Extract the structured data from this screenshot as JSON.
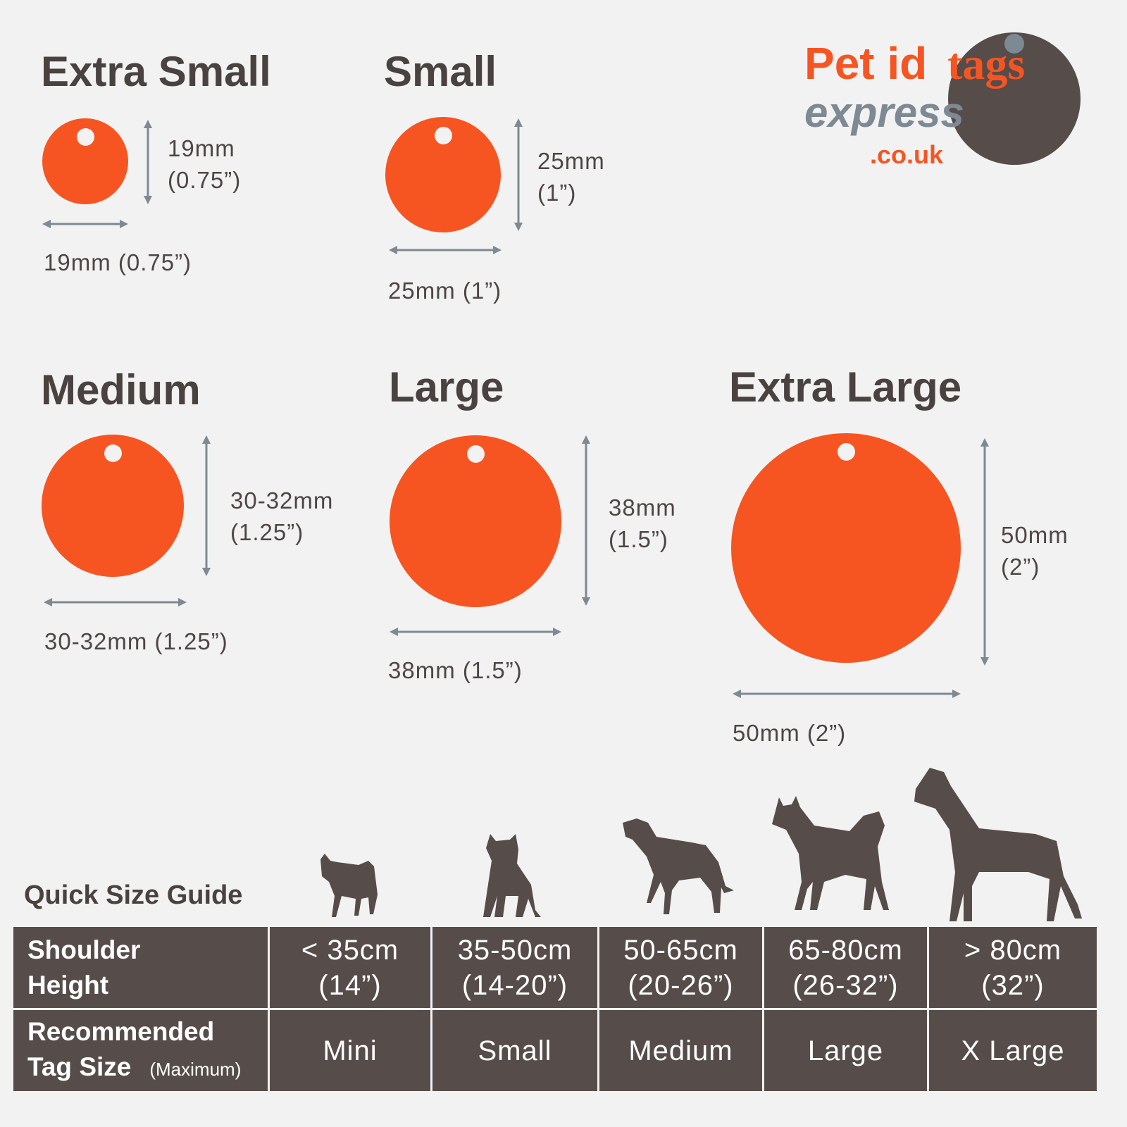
{
  "logo": {
    "line1a": "Pet id",
    "line1b": "tags",
    "line2": "express",
    "line3": ".co.uk",
    "colors": {
      "orange": "#f65522",
      "grey": "#7d8993",
      "dark": "#564c4a"
    }
  },
  "colors": {
    "tag": "#f65522",
    "arrow": "#7d8993",
    "table_bg": "#564c4a",
    "background": "#f2f2f2"
  },
  "sizes": [
    {
      "title": "Extra Small",
      "height_mm": "19mm",
      "height_in": "(0.75”)",
      "width_label": "19mm (0.75”)"
    },
    {
      "title": "Small",
      "height_mm": "25mm",
      "height_in": "(1”)",
      "width_label": "25mm (1”)"
    },
    {
      "title": "Medium",
      "height_mm": "30-32mm",
      "height_in": "(1.25”)",
      "width_label": "30-32mm (1.25”)"
    },
    {
      "title": "Large",
      "height_mm": "38mm",
      "height_in": "(1.5”)",
      "width_label": "38mm (1.5”)"
    },
    {
      "title": "Extra Large",
      "height_mm": "50mm",
      "height_in": "(2”)",
      "width_label": "50mm (2”)"
    }
  ],
  "guide": {
    "title": "Quick Size Guide",
    "row1_header_a": "Shoulder",
    "row1_header_b": "Height",
    "row2_header_a": "Recommended",
    "row2_header_b": "Tag Size",
    "row2_header_note": "(Maximum)",
    "columns": [
      {
        "height_cm": "< 35cm",
        "height_in": "(14”)",
        "tag": "Mini",
        "dog_icon": "chihuahua-silhouette"
      },
      {
        "height_cm": "35-50cm",
        "height_in": "(14-20”)",
        "tag": "Small",
        "dog_icon": "french-bulldog-silhouette"
      },
      {
        "height_cm": "50-65cm",
        "height_in": "(20-26”)",
        "tag": "Medium",
        "dog_icon": "boxer-silhouette"
      },
      {
        "height_cm": "65-80cm",
        "height_in": "(26-32”)",
        "tag": "Large",
        "dog_icon": "akita-silhouette"
      },
      {
        "height_cm": "> 80cm",
        "height_in": "(32”)",
        "tag": "X Large",
        "dog_icon": "great-dane-silhouette"
      }
    ]
  }
}
